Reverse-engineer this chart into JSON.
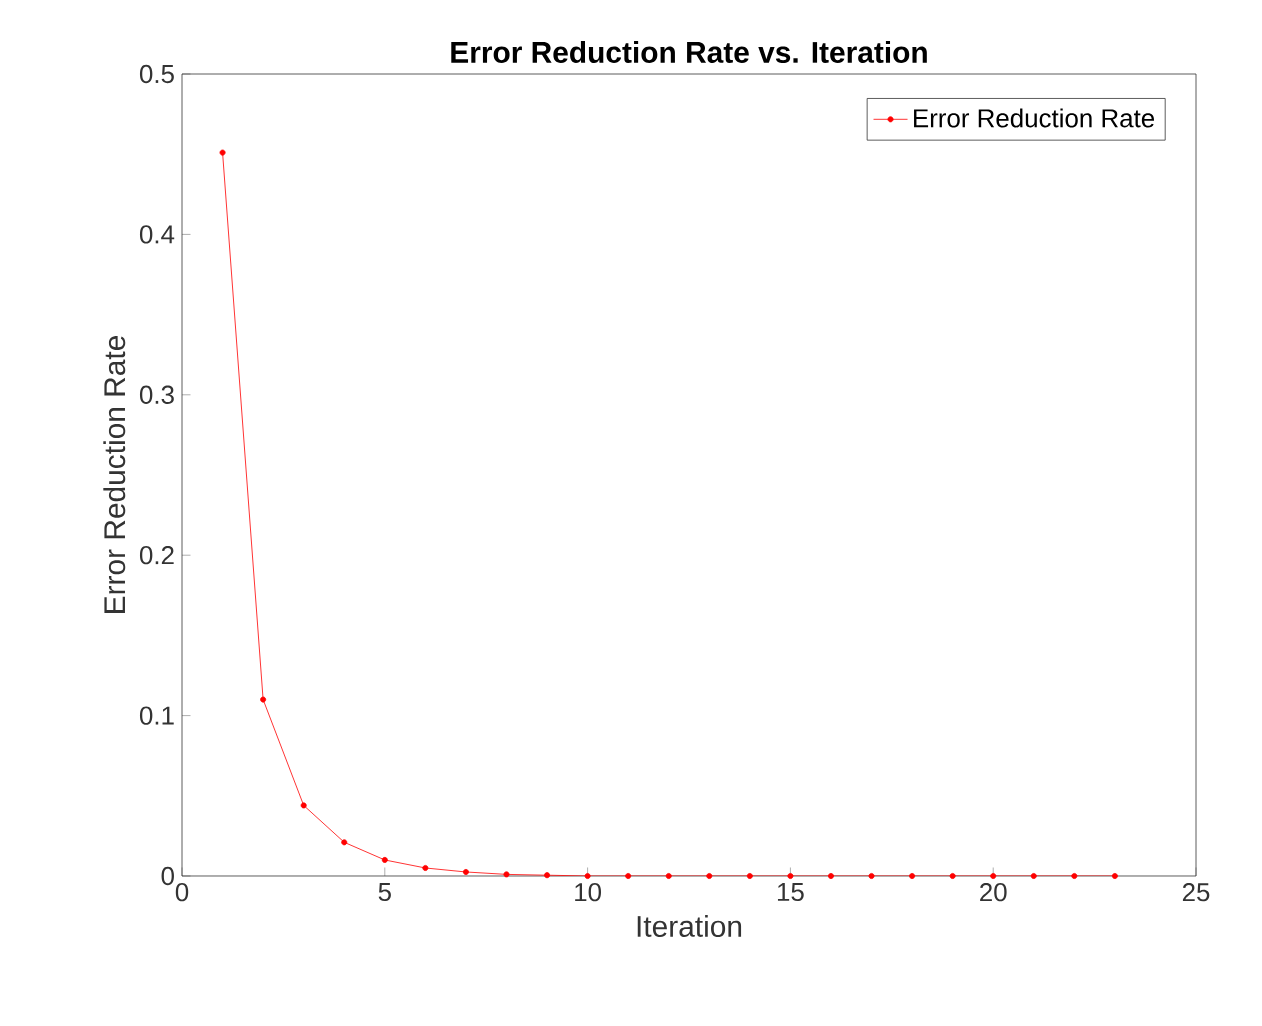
{
  "chart_data": {
    "type": "line",
    "title": "Error Reduction Rate vs. Iteration",
    "xlabel": "Iteration",
    "ylabel": "Error Reduction Rate",
    "x": [
      1,
      2,
      3,
      4,
      5,
      6,
      7,
      8,
      9,
      10,
      11,
      12,
      13,
      14,
      15,
      16,
      17,
      18,
      19,
      20,
      21,
      22,
      23
    ],
    "series": [
      {
        "name": "Error Reduction Rate",
        "color": "#ff0000",
        "values": [
          0.451,
          0.11,
          0.044,
          0.021,
          0.01,
          0.005,
          0.0025,
          0.001,
          0.0005,
          0,
          0,
          0,
          0,
          0,
          0,
          0,
          0,
          0,
          0,
          0,
          0,
          0,
          0
        ]
      }
    ],
    "xlim": [
      0,
      25
    ],
    "xticks": [
      0,
      5,
      10,
      15,
      20,
      25
    ],
    "ylim": [
      0,
      0.5
    ],
    "yticks": [
      0,
      0.1,
      0.2,
      0.3,
      0.4,
      0.5
    ],
    "legend": "top right",
    "marker": "circle",
    "line_style": "solid",
    "grid": false
  }
}
